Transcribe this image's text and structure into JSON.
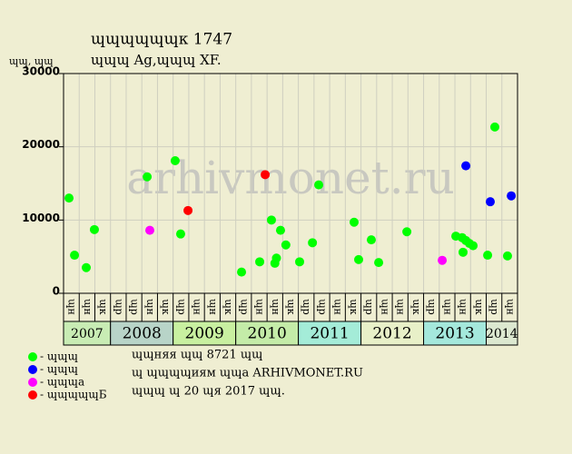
{
  "chart_data": {
    "type": "scatter",
    "title": "ɰɰɰɰɰɰк 1747",
    "subtitle": "ɰɰɰ Ag,ɰɰɰ XF.",
    "y_label": "ɰɰ, ɰɰ",
    "watermark": "arhivmonet.ru",
    "ylim": [
      0,
      30000
    ],
    "yticks": [
      0,
      10000,
      20000,
      30000
    ],
    "xlim": [
      0,
      29
    ],
    "categories": [
      "ɰн",
      "ɰн",
      "ɰк",
      "ɰр",
      "ɰр",
      "ɰн",
      "ɰк",
      "ɰр",
      "ɰн",
      "ɰн",
      "ɰк",
      "ɰр",
      "ɰн",
      "ɰн",
      "ɰк",
      "ɰр",
      "ɰр",
      "ɰн",
      "ɰк",
      "ɰр",
      "ɰн",
      "ɰн",
      "ɰк",
      "ɰр",
      "ɰн",
      "ɰн",
      "ɰк",
      "ɰр",
      "ɰн"
    ],
    "years": [
      {
        "label": "2007",
        "columns": 3,
        "color": "#c8ecb4"
      },
      {
        "label": "2008",
        "columns": 4,
        "color": "#b8d4c8"
      },
      {
        "label": "2009",
        "columns": 4,
        "color": "#c8f0a0"
      },
      {
        "label": "2010",
        "columns": 4,
        "color": "#c4eca8"
      },
      {
        "label": "2011",
        "columns": 4,
        "color": "#a4ecd8"
      },
      {
        "label": "2012",
        "columns": 4,
        "color": "#e8f0c8"
      },
      {
        "label": "2013",
        "columns": 4,
        "color": "#a4e8dc"
      },
      {
        "label": "2014",
        "columns": 2,
        "color": "#dce8d0"
      }
    ],
    "grid": true,
    "series": [
      {
        "name": "- ɰɰɰ",
        "color": "#00ff00",
        "x": [
          0.35,
          0.7,
          1.45,
          1.97,
          5.34,
          7.13,
          7.48,
          11.37,
          12.53,
          13.28,
          13.5,
          13.6,
          13.86,
          14.2,
          15.08,
          15.9,
          16.3,
          18.56,
          18.85,
          19.66,
          20.13,
          21.93,
          25.06,
          25.46,
          25.52,
          25.7,
          25.93,
          26.16,
          27.09,
          27.55,
          28.36
        ],
        "values": [
          13000,
          5200,
          3500,
          8700,
          15900,
          18100,
          8100,
          2900,
          4300,
          10000,
          4100,
          4800,
          8600,
          6600,
          4300,
          6900,
          14800,
          9700,
          4600,
          7300,
          4200,
          8400,
          7800,
          7600,
          5600,
          7200,
          6800,
          6500,
          5200,
          22700,
          5100
        ]
      },
      {
        "name": "- ɰɰɰ",
        "color": "#0000ff",
        "x": [
          25.7,
          27.26,
          28.6
        ],
        "values": [
          17400,
          12500,
          13300
        ]
      },
      {
        "name": "- ɰɰɰа",
        "color": "#ff00ff",
        "x": [
          5.51,
          24.19
        ],
        "values": [
          8600,
          4500
        ]
      },
      {
        "name": "- ɰɰɰɰɰБ",
        "color": "#ff0000",
        "x": [
          7.95,
          12.88
        ],
        "values": [
          11300,
          16200
        ]
      }
    ],
    "notes": [
      "ɰɰняя ɰɰ 8721 ɰɰ",
      "ɰ ɰɰɰɰиям ɰɰа ARHIVMONET.RU",
      "ɰɰɰ ɰ 20 ɰя 2017 ɰɰ."
    ]
  }
}
